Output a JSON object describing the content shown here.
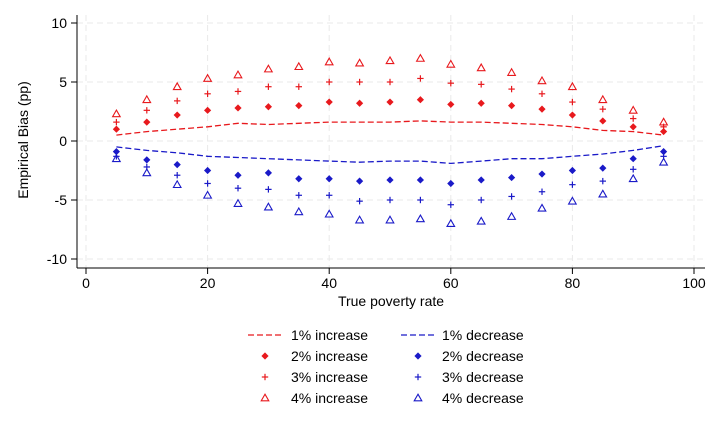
{
  "chart_data": {
    "type": "scatter",
    "xlabel": "True poverty rate",
    "ylabel": "Empirical Bias (pp)",
    "xlim": [
      0,
      100
    ],
    "ylim": [
      -10,
      10
    ],
    "x_ticks": [
      0,
      20,
      40,
      60,
      80,
      100
    ],
    "x_tick_labels": [
      "0",
      "20",
      "40",
      "60",
      "80",
      "100"
    ],
    "y_ticks": [
      -10,
      -5,
      0,
      5,
      10
    ],
    "y_tick_labels": [
      "-10",
      "-5",
      "0",
      "5",
      "10"
    ],
    "grid": true,
    "legend_position": "bottom",
    "x": [
      5,
      10,
      15,
      20,
      25,
      30,
      35,
      40,
      45,
      50,
      55,
      60,
      65,
      70,
      75,
      80,
      85,
      90,
      95
    ],
    "series": [
      {
        "name": "1% increase",
        "color": "#e8191d",
        "marker": "dash-line",
        "values": [
          0.5,
          0.8,
          1.0,
          1.2,
          1.5,
          1.4,
          1.5,
          1.6,
          1.6,
          1.6,
          1.7,
          1.6,
          1.6,
          1.5,
          1.4,
          1.2,
          0.9,
          0.8,
          0.5
        ]
      },
      {
        "name": "1% decrease",
        "color": "#1a1ac8",
        "marker": "dash-line",
        "values": [
          -0.5,
          -0.8,
          -1.0,
          -1.3,
          -1.4,
          -1.5,
          -1.6,
          -1.7,
          -1.8,
          -1.7,
          -1.7,
          -1.9,
          -1.7,
          -1.5,
          -1.5,
          -1.3,
          -1.1,
          -0.8,
          -0.4
        ]
      },
      {
        "name": "2% increase",
        "color": "#e8191d",
        "marker": "diamond",
        "values": [
          1.0,
          1.6,
          2.2,
          2.6,
          2.8,
          2.9,
          3.0,
          3.3,
          3.2,
          3.3,
          3.5,
          3.1,
          3.2,
          3.0,
          2.7,
          2.2,
          1.7,
          1.2,
          0.8
        ]
      },
      {
        "name": "2% decrease",
        "color": "#1a1ac8",
        "marker": "diamond",
        "values": [
          -0.9,
          -1.6,
          -2.0,
          -2.5,
          -2.9,
          -2.7,
          -3.2,
          -3.2,
          -3.4,
          -3.3,
          -3.3,
          -3.6,
          -3.3,
          -3.1,
          -2.8,
          -2.5,
          -2.3,
          -1.5,
          -0.9
        ]
      },
      {
        "name": "3% increase",
        "color": "#e8191d",
        "marker": "plus",
        "values": [
          1.6,
          2.6,
          3.4,
          4.0,
          4.2,
          4.6,
          4.6,
          5.0,
          5.0,
          5.0,
          5.3,
          4.9,
          4.8,
          4.4,
          4.0,
          3.3,
          2.7,
          1.9,
          1.2
        ]
      },
      {
        "name": "3% decrease",
        "color": "#1a1ac8",
        "marker": "plus",
        "values": [
          -1.3,
          -2.2,
          -2.9,
          -3.6,
          -4.0,
          -4.1,
          -4.6,
          -4.6,
          -5.1,
          -5.0,
          -5.0,
          -5.4,
          -5.0,
          -4.7,
          -4.3,
          -3.7,
          -3.4,
          -2.4,
          -1.3
        ]
      },
      {
        "name": "4% increase",
        "color": "#e8191d",
        "marker": "triangle",
        "values": [
          2.3,
          3.5,
          4.6,
          5.3,
          5.6,
          6.1,
          6.3,
          6.7,
          6.6,
          6.8,
          7.0,
          6.5,
          6.2,
          5.8,
          5.1,
          4.6,
          3.5,
          2.6,
          1.6
        ]
      },
      {
        "name": "4% decrease",
        "color": "#1a1ac8",
        "marker": "triangle",
        "values": [
          -1.5,
          -2.7,
          -3.7,
          -4.6,
          -5.3,
          -5.6,
          -6.0,
          -6.2,
          -6.7,
          -6.7,
          -6.6,
          -7.0,
          -6.8,
          -6.4,
          -5.7,
          -5.1,
          -4.5,
          -3.2,
          -1.8
        ]
      }
    ],
    "legend_layout": [
      [
        "1% increase",
        "1% decrease"
      ],
      [
        "2% increase",
        "2% decrease"
      ],
      [
        "3% increase",
        "3% decrease"
      ],
      [
        "4% increase",
        "4% decrease"
      ]
    ]
  }
}
